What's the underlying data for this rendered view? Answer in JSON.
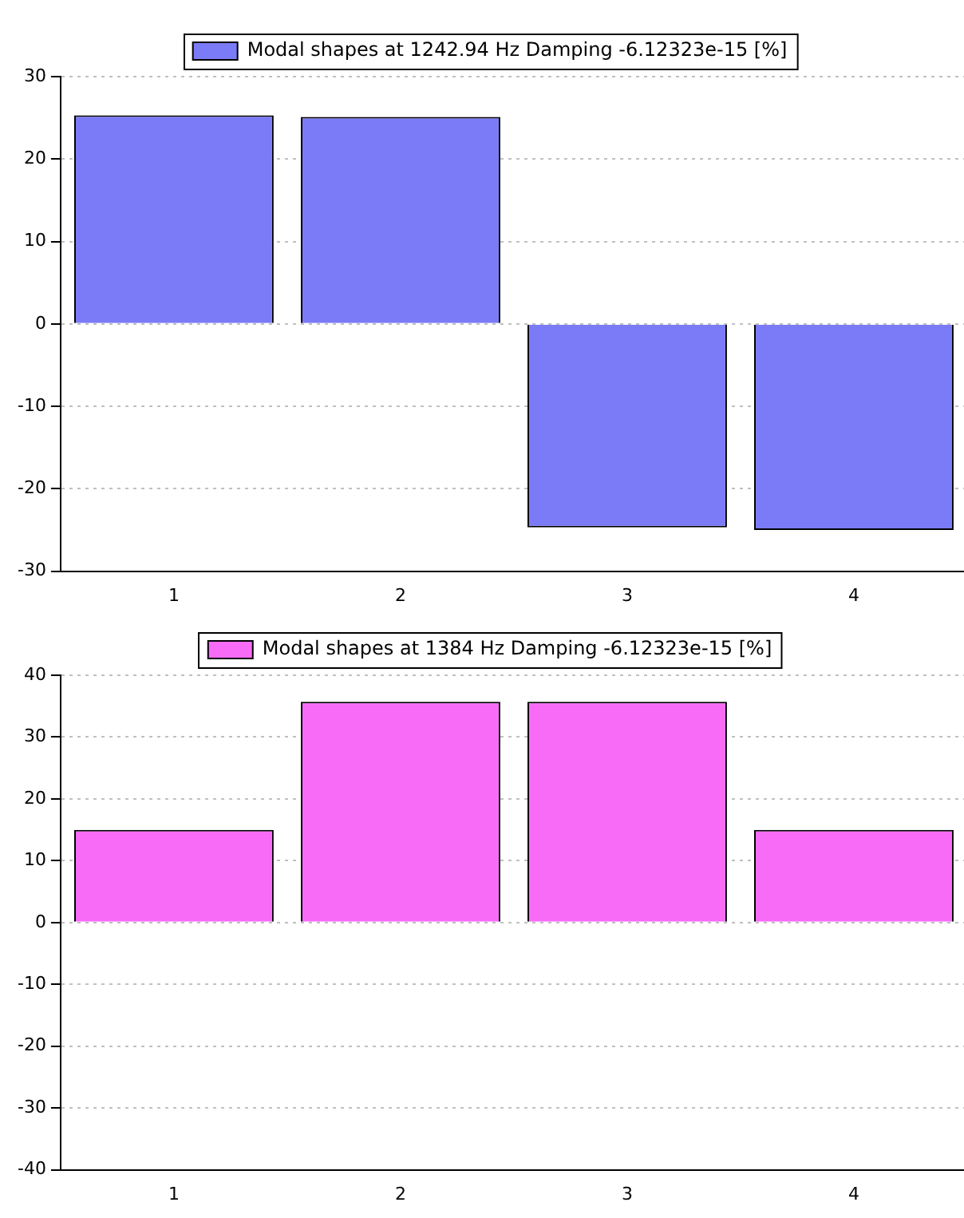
{
  "chart_data": [
    {
      "type": "bar",
      "categories": [
        "1",
        "2",
        "3",
        "4"
      ],
      "series": [
        {
          "name": "Modal shapes at 1242.94 Hz Damping -6.12323e-15 [%]",
          "color": "#7b7bf7",
          "values": [
            25.3,
            25.1,
            -24.7,
            -25.0
          ]
        }
      ],
      "ylim": [
        -30,
        30
      ],
      "yticks": [
        -30,
        -20,
        -10,
        0,
        10,
        20,
        30
      ],
      "grid": "y",
      "legend": "top"
    },
    {
      "type": "bar",
      "categories": [
        "1",
        "2",
        "3",
        "4"
      ],
      "series": [
        {
          "name": "Modal shapes at 1384 Hz Damping -6.12323e-15 [%]",
          "color": "#f76bf7",
          "values": [
            15.0,
            35.7,
            35.7,
            15.0
          ]
        }
      ],
      "ylim": [
        -40,
        40
      ],
      "yticks": [
        -40,
        -30,
        -20,
        -10,
        0,
        10,
        20,
        30,
        40
      ],
      "grid": "y",
      "legend": "top"
    }
  ]
}
